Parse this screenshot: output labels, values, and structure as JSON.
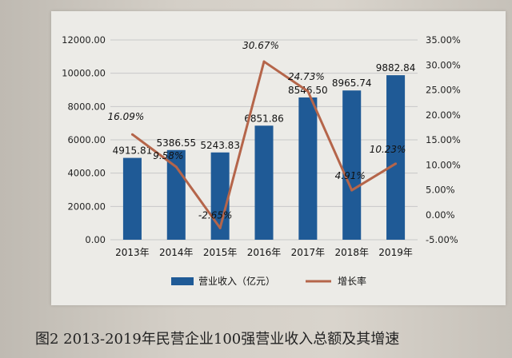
{
  "caption": "图2 2013-2019年民营企业100强营业收入总额及其增速",
  "colors": {
    "bar": "#1f5a96",
    "line": "#b5654a",
    "grid": "#c8c8c8"
  },
  "chart_data": {
    "type": "bar+line",
    "categories": [
      "2013年",
      "2014年",
      "2015年",
      "2016年",
      "2017年",
      "2018年",
      "2019年"
    ],
    "series": [
      {
        "name": "营业收入（亿元）",
        "type": "bar",
        "axis": "left",
        "values": [
          4915.81,
          5386.55,
          5243.83,
          6851.86,
          8546.5,
          8965.74,
          9882.84
        ],
        "labels": [
          "4915.81",
          "5386.55",
          "5243.83",
          "6851.86",
          "8546.50",
          "8965.74",
          "9882.84"
        ]
      },
      {
        "name": "增长率",
        "type": "line",
        "axis": "right",
        "values": [
          16.09,
          9.58,
          -2.65,
          30.67,
          24.73,
          4.91,
          10.23
        ],
        "labels": [
          "16.09%",
          "9.58%",
          "-2.65%",
          "30.67%",
          "24.73%",
          "4.91%",
          "10.23%"
        ]
      }
    ],
    "ylim_left": [
      0,
      12000
    ],
    "ylim_right": [
      -5,
      35
    ],
    "left_ticks": [
      "0.00",
      "2000.00",
      "4000.00",
      "6000.00",
      "8000.00",
      "10000.00",
      "12000.00"
    ],
    "right_ticks": [
      "-5.00%",
      "0.00%",
      "5.00%",
      "10.00%",
      "15.00%",
      "20.00%",
      "25.00%",
      "30.00%",
      "35.00%"
    ],
    "grid": true,
    "legend_position": "bottom"
  }
}
